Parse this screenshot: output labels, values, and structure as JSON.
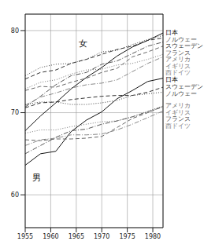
{
  "chart_data": {
    "type": "line",
    "annotations": [
      "女",
      "男"
    ],
    "x": [
      1955,
      1958,
      1961,
      1964,
      1967,
      1970,
      1973,
      1976,
      1979,
      1982
    ],
    "xlim": [
      1955,
      1982
    ],
    "xticks": [
      1955,
      1960,
      1965,
      1970,
      1975,
      1980
    ],
    "ylim": [
      56,
      82
    ],
    "yticks": [
      60,
      70,
      80
    ],
    "grid": true,
    "series": [
      {
        "name": "日本",
        "color": "#111111",
        "line_style": "solid",
        "values": [
          67.8,
          69.6,
          71.2,
          72.9,
          74.3,
          75.5,
          76.9,
          78.0,
          78.8,
          79.7
        ]
      },
      {
        "name": "スウェーデン",
        "color": "#333333",
        "line_style": "dashed",
        "values": [
          74.1,
          74.9,
          75.2,
          76.0,
          76.5,
          77.1,
          77.7,
          78.1,
          78.8,
          79.1
        ]
      },
      {
        "name": "ノルウェー",
        "color": "#444444",
        "line_style": "dotted",
        "values": [
          74.5,
          75.5,
          75.9,
          76.0,
          76.5,
          77.4,
          77.6,
          78.3,
          78.9,
          79.4
        ]
      },
      {
        "name": "フランス",
        "color": "#555555",
        "line_style": "dashdot",
        "values": [
          70.7,
          72.0,
          73.4,
          74.5,
          74.9,
          75.9,
          76.3,
          77.2,
          78.1,
          78.6
        ]
      },
      {
        "name": "アメリカ",
        "color": "#666666",
        "line_style": "dashed",
        "values": [
          72.7,
          73.2,
          73.1,
          73.7,
          74.2,
          74.9,
          75.4,
          76.8,
          77.4,
          78.1
        ]
      },
      {
        "name": "イギリス",
        "color": "#777777",
        "line_style": "dotted",
        "values": [
          72.9,
          73.7,
          74.0,
          74.7,
          75.2,
          75.3,
          75.8,
          76.0,
          76.5,
          77.1
        ]
      },
      {
        "name": "西ドイツ",
        "color": "#888888",
        "line_style": "dashdot",
        "values": [
          70.9,
          71.9,
          72.4,
          73.0,
          73.4,
          73.6,
          74.0,
          75.0,
          76.0,
          76.8
        ]
      },
      {
        "name": "日本",
        "color": "#111111",
        "line_style": "solid",
        "values": [
          63.6,
          65.0,
          65.3,
          67.7,
          69.1,
          70.1,
          71.7,
          72.7,
          73.8,
          74.2
        ]
      },
      {
        "name": "スウェーデン",
        "color": "#333333",
        "line_style": "dashed",
        "values": [
          70.6,
          71.2,
          71.3,
          71.6,
          71.8,
          72.0,
          72.1,
          72.1,
          72.5,
          73.1
        ]
      },
      {
        "name": "ノルウェー",
        "color": "#444444",
        "line_style": "dotted",
        "values": [
          71.0,
          71.3,
          71.3,
          71.0,
          71.0,
          71.2,
          71.5,
          72.1,
          72.3,
          72.5
        ]
      },
      {
        "name": "フランス",
        "color": "#555555",
        "line_style": "dashdot",
        "values": [
          65.0,
          66.0,
          67.0,
          67.8,
          68.0,
          68.6,
          69.0,
          69.5,
          70.1,
          70.7
        ]
      },
      {
        "name": "アメリカ",
        "color": "#666666",
        "line_style": "dashed",
        "values": [
          66.7,
          66.6,
          66.8,
          66.8,
          66.9,
          67.1,
          68.2,
          69.3,
          70.0,
          70.8
        ]
      },
      {
        "name": "イギリス",
        "color": "#777777",
        "line_style": "dotted",
        "values": [
          67.5,
          67.9,
          67.9,
          68.3,
          68.6,
          68.9,
          69.0,
          69.5,
          70.2,
          70.8
        ]
      },
      {
        "name": "西ドイツ",
        "color": "#888888",
        "line_style": "dashdot",
        "values": [
          66.0,
          66.7,
          66.9,
          67.3,
          67.3,
          67.4,
          67.9,
          68.6,
          69.4,
          70.2
        ]
      }
    ]
  }
}
